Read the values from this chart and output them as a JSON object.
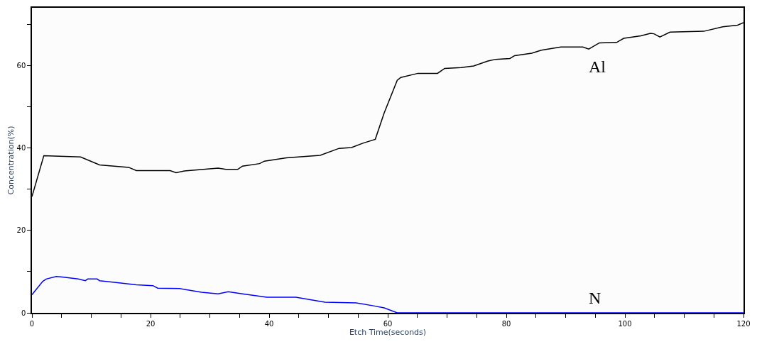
{
  "chart_data": {
    "type": "line",
    "xlabel": "Etch Time(seconds)",
    "ylabel": "Concentration(%)",
    "xlim": [
      0,
      120
    ],
    "ylim": [
      0,
      74
    ],
    "xticks": [
      0,
      {
        "value": 5,
        "label": null
      },
      {
        "value": 10,
        "label": null
      },
      {
        "value": 15,
        "label": null
      },
      20,
      {
        "value": 25,
        "label": null
      },
      {
        "value": 30,
        "label": null
      },
      {
        "value": 35,
        "label": null
      },
      40,
      {
        "value": 45,
        "label": null
      },
      {
        "value": 50,
        "label": null
      },
      {
        "value": 55,
        "label": null
      },
      60,
      {
        "value": 65,
        "label": null
      },
      {
        "value": 70,
        "label": null
      },
      {
        "value": 75,
        "label": null
      },
      80,
      {
        "value": 85,
        "label": null
      },
      {
        "value": 90,
        "label": null
      },
      {
        "value": 95,
        "label": null
      },
      100,
      {
        "value": 105,
        "label": null
      },
      {
        "value": 110,
        "label": null
      },
      {
        "value": 115,
        "label": null
      },
      120
    ],
    "yticks": [
      0,
      {
        "value": 10,
        "label": null
      },
      20,
      {
        "value": 30,
        "label": null
      },
      40,
      {
        "value": 50,
        "label": null
      },
      60,
      {
        "value": 70,
        "label": null
      }
    ],
    "legend": false,
    "marker": "none",
    "line_style": "solid",
    "series": [
      {
        "name": "Al",
        "color": "#000000",
        "x": [
          0,
          2,
          8.2,
          11.4,
          16.3,
          17.6,
          23.3,
          24.3,
          25.7,
          31.4,
          32.7,
          34.7,
          35.5,
          38.4,
          39.2,
          42.9,
          48.6,
          51.8,
          53.9,
          55.9,
          57.9,
          59.4,
          61.6,
          62.2,
          65.1,
          68.4,
          69.6,
          72.4,
          74.5,
          76.9,
          78.2,
          80.6,
          81.4,
          84.3,
          85.9,
          89.2,
          92.9,
          93.9,
          95.7,
          98.6,
          99.8,
          102.7,
          104.3,
          104.9,
          105.9,
          107.6,
          113.3,
          116.5,
          119,
          120
        ],
        "values": [
          28.2,
          38.1,
          37.8,
          35.9,
          35.3,
          34.5,
          34.5,
          34,
          34.4,
          35.1,
          34.8,
          34.8,
          35.6,
          36.2,
          36.8,
          37.6,
          38.2,
          39.9,
          40.1,
          41.2,
          42.1,
          48.5,
          56.4,
          57.1,
          58.1,
          58.1,
          59.3,
          59.5,
          59.9,
          61.1,
          61.5,
          61.7,
          62.4,
          63,
          63.7,
          64.5,
          64.5,
          64,
          65.5,
          65.6,
          66.6,
          67.2,
          67.8,
          67.7,
          66.9,
          68.1,
          68.3,
          69.4,
          69.8,
          70.4
        ]
      },
      {
        "name": "N",
        "color": "#0000ff",
        "x": [
          0,
          1.8,
          2.4,
          4.1,
          5.1,
          7.8,
          9,
          9.4,
          11,
          11.4,
          13.9,
          17.6,
          20.4,
          21.2,
          24.9,
          28.6,
          31.4,
          33.1,
          35.5,
          39.6,
          44.5,
          49.4,
          54.7,
          57.6,
          59.4,
          61.6,
          120
        ],
        "values": [
          4.4,
          7.6,
          8.2,
          8.8,
          8.7,
          8.2,
          7.8,
          8.2,
          8.2,
          7.8,
          7.4,
          6.8,
          6.6,
          6,
          5.9,
          5,
          4.6,
          5.1,
          4.6,
          3.8,
          3.8,
          2.6,
          2.4,
          1.7,
          1.2,
          0,
          0
        ]
      }
    ]
  }
}
